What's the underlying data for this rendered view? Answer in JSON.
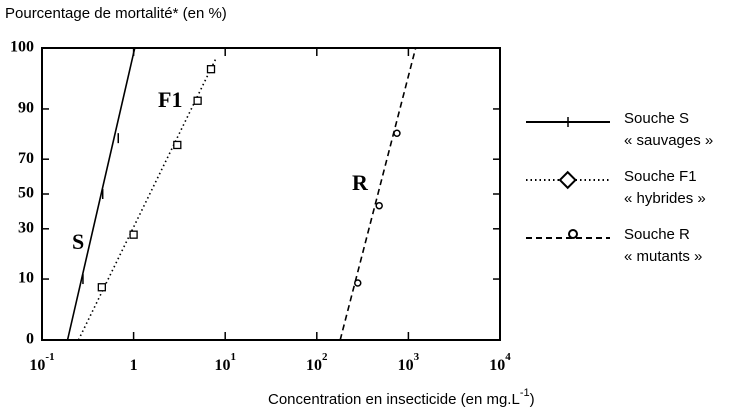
{
  "chart_data": {
    "type": "line",
    "title": "Pourcentage de mortalité* (en %)",
    "x_label": [
      "Concentration en insecticide (en mg.L",
      "-1",
      ")"
    ],
    "xscale": "log",
    "yscale": "probit",
    "xlim": [
      0.1,
      10000
    ],
    "ylim": [
      0,
      100
    ],
    "xticks": [
      {
        "value": 0.1,
        "label": "10",
        "exp": "-1"
      },
      1,
      {
        "value": 10,
        "label": "10",
        "exp": "1"
      },
      {
        "value": 100,
        "label": "10",
        "exp": "2"
      },
      {
        "value": 1000,
        "label": "10",
        "exp": "3"
      },
      {
        "value": 10000,
        "label": "10",
        "exp": "4"
      }
    ],
    "yticks": [
      0,
      10,
      30,
      50,
      70,
      90,
      100
    ],
    "series": [
      {
        "name_lines": [
          "Souche S",
          "« sauvages »"
        ],
        "short": "S",
        "color": "#000",
        "style": "solid",
        "marker": "plus",
        "fit_x": [
          0.19,
          1.03
        ],
        "fit_values": [
          0,
          100
        ],
        "x": [
          0.28,
          0.46,
          0.68
        ],
        "values": [
          10,
          50,
          80
        ]
      },
      {
        "name_lines": [
          "Souche F1",
          "« hybrides »"
        ],
        "short": "F1",
        "color": "#000",
        "style": "dotted",
        "marker": "square",
        "fit_x": [
          0.25,
          8
        ],
        "fit_values": [
          0,
          98
        ],
        "x": [
          0.45,
          1.0,
          3.0,
          5.0,
          7.0
        ],
        "values": [
          8,
          27,
          77,
          92,
          97
        ]
      },
      {
        "name_lines": [
          "Souche R",
          "« mutants »"
        ],
        "short": "R",
        "color": "#000",
        "style": "dashed",
        "marker": "circle",
        "fit_x": [
          180,
          1200
        ],
        "fit_values": [
          0,
          100
        ],
        "x": [
          280,
          480,
          750
        ],
        "values": [
          9,
          43,
          82
        ]
      }
    ]
  }
}
